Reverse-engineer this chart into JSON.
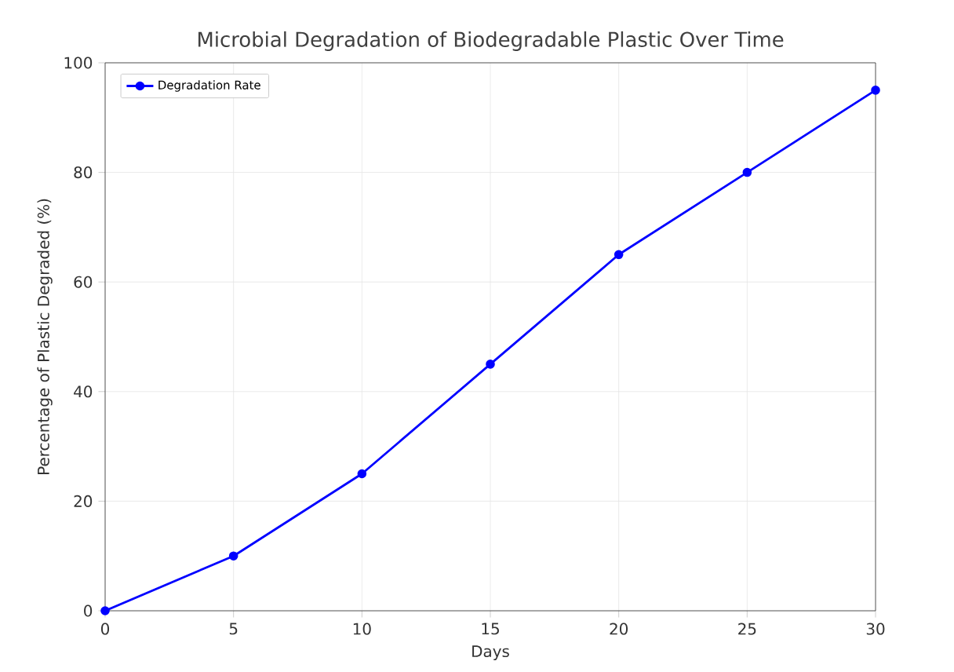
{
  "chart_data": {
    "type": "line",
    "title": "Microbial Degradation of Biodegradable Plastic Over Time",
    "xlabel": "Days",
    "ylabel": "Percentage of Plastic Degraded (%)",
    "x": [
      0,
      5,
      10,
      15,
      20,
      25,
      30
    ],
    "series": [
      {
        "name": "Degradation Rate",
        "color": "#0000ff",
        "values": [
          0,
          10,
          25,
          45,
          65,
          80,
          95
        ]
      }
    ],
    "xlim": [
      0,
      30
    ],
    "ylim": [
      0,
      100
    ],
    "xticks": [
      0,
      5,
      10,
      15,
      20,
      25,
      30
    ],
    "yticks": [
      0,
      20,
      40,
      60,
      80,
      100
    ],
    "grid": true,
    "legend": "top left",
    "marker": "circle",
    "line_style": "solid"
  }
}
